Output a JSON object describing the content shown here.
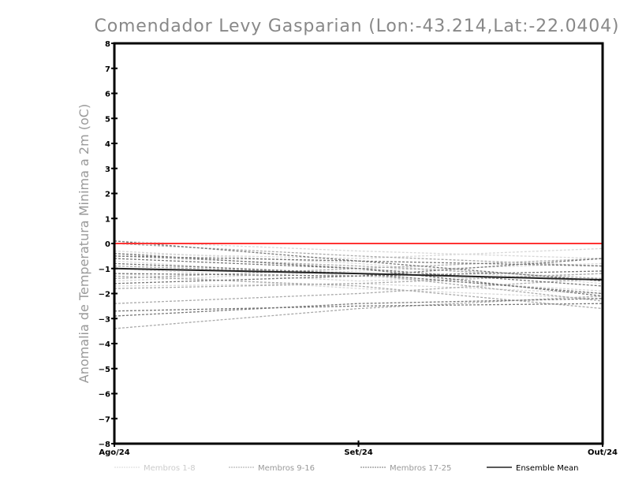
{
  "chart_data": {
    "type": "line",
    "title": "Comendador Levy Gasparian (Lon:-43.214,Lat:-22.0404)",
    "ylabel": "Anomalia de Temperatura Minima a 2m (oC)",
    "xlabel": "",
    "categories": [
      "Ago/24",
      "Set/24",
      "Out/24"
    ],
    "ylim": [
      -8,
      8
    ],
    "yticks": [
      -8,
      -7,
      -6,
      -5,
      -4,
      -3,
      -2,
      -1,
      0,
      1,
      2,
      3,
      4,
      5,
      6,
      7,
      8
    ],
    "reference_line": {
      "value": 0,
      "color": "#ff3333"
    },
    "groups": [
      {
        "name": "Membros 1-8",
        "color": "#d8d8d8",
        "series": [
          [
            0.1,
            -0.3,
            -0.6
          ],
          [
            -0.4,
            -0.6,
            -0.2
          ],
          [
            -1.5,
            -1.1,
            -0.8
          ],
          [
            -1.7,
            -1.6,
            -2.0
          ],
          [
            -0.7,
            -1.3,
            -1.9
          ],
          [
            -1.0,
            -1.5,
            -1.2
          ],
          [
            -0.3,
            -0.8,
            -1.6
          ],
          [
            -1.2,
            -1.8,
            -2.2
          ]
        ]
      },
      {
        "name": "Membros 9-16",
        "color": "#aaaaaa",
        "series": [
          [
            0.0,
            -0.5,
            -0.9
          ],
          [
            -0.5,
            -0.9,
            -1.4
          ],
          [
            -1.4,
            -1.0,
            -0.6
          ],
          [
            -1.8,
            -1.6,
            -1.2
          ],
          [
            -2.4,
            -2.0,
            -1.4
          ],
          [
            -3.4,
            -2.6,
            -2.1
          ],
          [
            -0.9,
            -1.2,
            -2.3
          ],
          [
            -1.3,
            -1.7,
            -2.6
          ]
        ]
      },
      {
        "name": "Membros 17-25",
        "color": "#777777",
        "series": [
          [
            0.1,
            -0.7,
            -1.5
          ],
          [
            -0.5,
            -0.7,
            -0.9
          ],
          [
            -0.8,
            -1.2,
            -2.0
          ],
          [
            -1.2,
            -1.3,
            -1.1
          ],
          [
            -2.9,
            -2.4,
            -2.2
          ],
          [
            -2.7,
            -2.5,
            -2.4
          ],
          [
            -0.4,
            -1.0,
            -1.7
          ],
          [
            -1.6,
            -1.3,
            -0.6
          ],
          [
            -0.6,
            -1.0,
            -2.1
          ]
        ]
      },
      {
        "name": "Ensemble Mean",
        "color": "#222222",
        "solid": true,
        "series": [
          [
            -1.0,
            -1.2,
            -1.45
          ]
        ]
      }
    ]
  }
}
